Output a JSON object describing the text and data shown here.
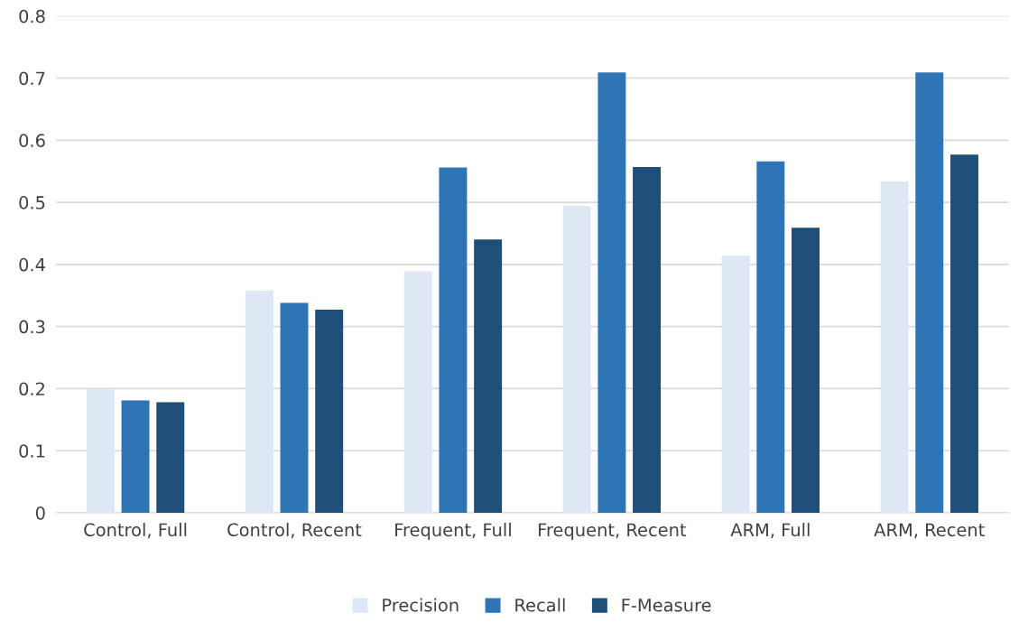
{
  "chart_data": {
    "type": "bar",
    "categories": [
      "Control, Full",
      "Control, Recent",
      "Frequent, Full",
      "Frequent, Recent",
      "ARM, Full",
      "ARM, Recent"
    ],
    "series": [
      {
        "name": "Precision",
        "color": "#dde8f4",
        "values": [
          0.2,
          0.358,
          0.389,
          0.494,
          0.414,
          0.534
        ]
      },
      {
        "name": "Recall",
        "color": "#2e75b6",
        "values": [
          0.181,
          0.338,
          0.556,
          0.709,
          0.566,
          0.709
        ]
      },
      {
        "name": "F-Measure",
        "color": "#1f4e79",
        "values": [
          0.178,
          0.327,
          0.44,
          0.557,
          0.459,
          0.577
        ]
      }
    ],
    "ylim": [
      0,
      0.8
    ],
    "yticks": [
      {
        "value": 0,
        "label": "0"
      },
      0.1,
      0.2,
      0.3,
      0.4,
      0.5,
      0.6,
      0.7,
      0.8
    ],
    "grid": "y",
    "legend": "bottom"
  }
}
